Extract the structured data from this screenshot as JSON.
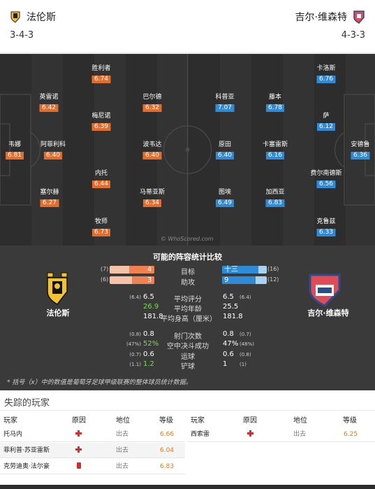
{
  "header": {
    "home": {
      "name": "法伦斯",
      "formation": "3-4-3"
    },
    "away": {
      "name": "吉尔·维森特",
      "formation": "4-3-3"
    }
  },
  "pitch": {
    "watermark": "© WhoScored.com",
    "home_players": [
      {
        "name": "韦娜",
        "rating": "6.81"
      },
      {
        "name": "英雷诺",
        "rating": "6.42"
      },
      {
        "name": "阿菲利科",
        "rating": "6.40"
      },
      {
        "name": "塞尔赫",
        "rating": "6.27"
      },
      {
        "name": "胜利者",
        "rating": "6.74"
      },
      {
        "name": "梅尼诺",
        "rating": "6.39"
      },
      {
        "name": "内托",
        "rating": "6.44"
      },
      {
        "name": "牧师",
        "rating": "6.73"
      },
      {
        "name": "巴尔德",
        "rating": "6.32"
      },
      {
        "name": "波韦达",
        "rating": "6.40"
      },
      {
        "name": "马蒂亚斯",
        "rating": "6.34"
      }
    ],
    "away_players": [
      {
        "name": "卡洛斯",
        "rating": "6.76"
      },
      {
        "name": "萨",
        "rating": "6.12"
      },
      {
        "name": "费尔南德斯",
        "rating": "6.56"
      },
      {
        "name": "克鲁兹",
        "rating": "6.33"
      },
      {
        "name": "科普亚",
        "rating": "7.07"
      },
      {
        "name": "原田",
        "rating": "6.40"
      },
      {
        "name": "图埃",
        "rating": "6.49"
      },
      {
        "name": "藤本",
        "rating": "6.78"
      },
      {
        "name": "卡塞雷斯",
        "rating": "6.16"
      },
      {
        "name": "加西亚",
        "rating": "6.83"
      },
      {
        "name": "安德鲁",
        "rating": "6.36"
      }
    ]
  },
  "compare": {
    "title": "可能的阵容统计比较",
    "home_name": "法伦斯",
    "away_name": "吉尔·维森特",
    "bars": [
      {
        "label": "目标",
        "home_total": "(7)",
        "home_value": "4",
        "home_fraction": 0.57,
        "away_value": "十三",
        "away_total": "(16)",
        "away_fraction": 0.81
      },
      {
        "label": "助攻",
        "home_total": "(6)",
        "home_value": "3",
        "home_fraction": 0.5,
        "away_value": "9",
        "away_total": "(12)",
        "away_fraction": 0.75
      }
    ],
    "stats_a": [
      {
        "label": "平均评分",
        "home_sub": "(6.4)",
        "home": "6.5",
        "home_green": false,
        "away": "6.5",
        "away_sub": "(6.4)"
      },
      {
        "label": "平均年龄",
        "home_sub": "",
        "home": "26.9",
        "home_green": true,
        "away": "25.5",
        "away_sub": ""
      },
      {
        "label": "平均身高（厘米）",
        "home_sub": "",
        "home": "181.8",
        "home_green": false,
        "away": "181.8",
        "away_sub": ""
      }
    ],
    "stats_b": [
      {
        "label": "射门次数",
        "home_sub": "(0.8)",
        "home": "0.8",
        "home_green": false,
        "away": "0.8",
        "away_sub": "(0.7)"
      },
      {
        "label": "空中决斗成功",
        "home_sub": "(47%)",
        "home": "52%",
        "home_green": true,
        "away": "47%",
        "away_sub": "(48%)"
      },
      {
        "label": "运球",
        "home_sub": "(0.7)",
        "home": "0.6",
        "home_green": false,
        "away": "0.6",
        "away_sub": "(0.8)"
      },
      {
        "label": "铲球",
        "home_sub": "(1.1)",
        "home": "1.2",
        "home_green": true,
        "away": "1",
        "away_sub": "(1)"
      }
    ],
    "note": "* 括号（x）中的数值是葡萄牙足球甲级联赛的整体球员统计数据。"
  },
  "missing": {
    "title": "失踪的玩家",
    "headers": {
      "player": "玩家",
      "reason": "原因",
      "status": "地位",
      "rating": "等级"
    },
    "home": [
      {
        "player": "托马内",
        "reason": "injury",
        "status": "出去",
        "rating": "6.66"
      },
      {
        "player": "菲利普·苏亚雷斯",
        "reason": "injury",
        "status": "出去",
        "rating": "6.04"
      },
      {
        "player": "克劳迪奥·法尔豪",
        "reason": "red-card",
        "status": "出去",
        "rating": "6.83"
      }
    ],
    "away": [
      {
        "player": "西索雷",
        "reason": "injury",
        "status": "出去",
        "rating": "6.25"
      }
    ]
  }
}
